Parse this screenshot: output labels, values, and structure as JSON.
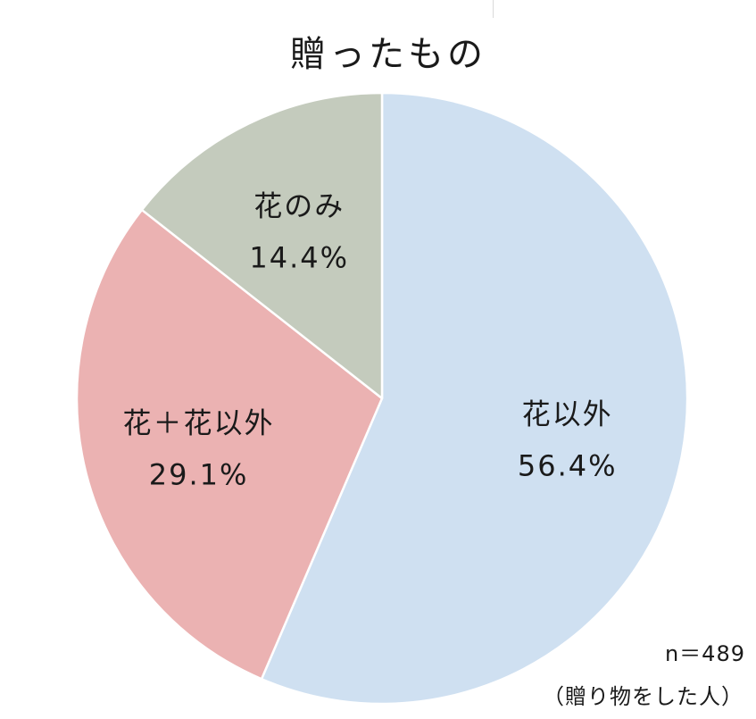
{
  "title": "贈ったもの",
  "chart_data": {
    "type": "pie",
    "title": "贈ったもの",
    "unit": "%",
    "start_angle_deg": 0,
    "direction": "clockwise",
    "slices": [
      {
        "label": "花以外",
        "value": 56.4,
        "value_text": "56.4%",
        "color": "#cfe0f1"
      },
      {
        "label": "花＋花以外",
        "value": 29.1,
        "value_text": "29.1%",
        "color": "#ebb2b2"
      },
      {
        "label": "花のみ",
        "value": 14.4,
        "value_text": "14.4%",
        "color": "#c4cbbd"
      }
    ]
  },
  "notes": {
    "sample_size": "n＝489",
    "base": "（贈り物をした人）"
  },
  "colors": {
    "slice_border": "#ffffff"
  }
}
